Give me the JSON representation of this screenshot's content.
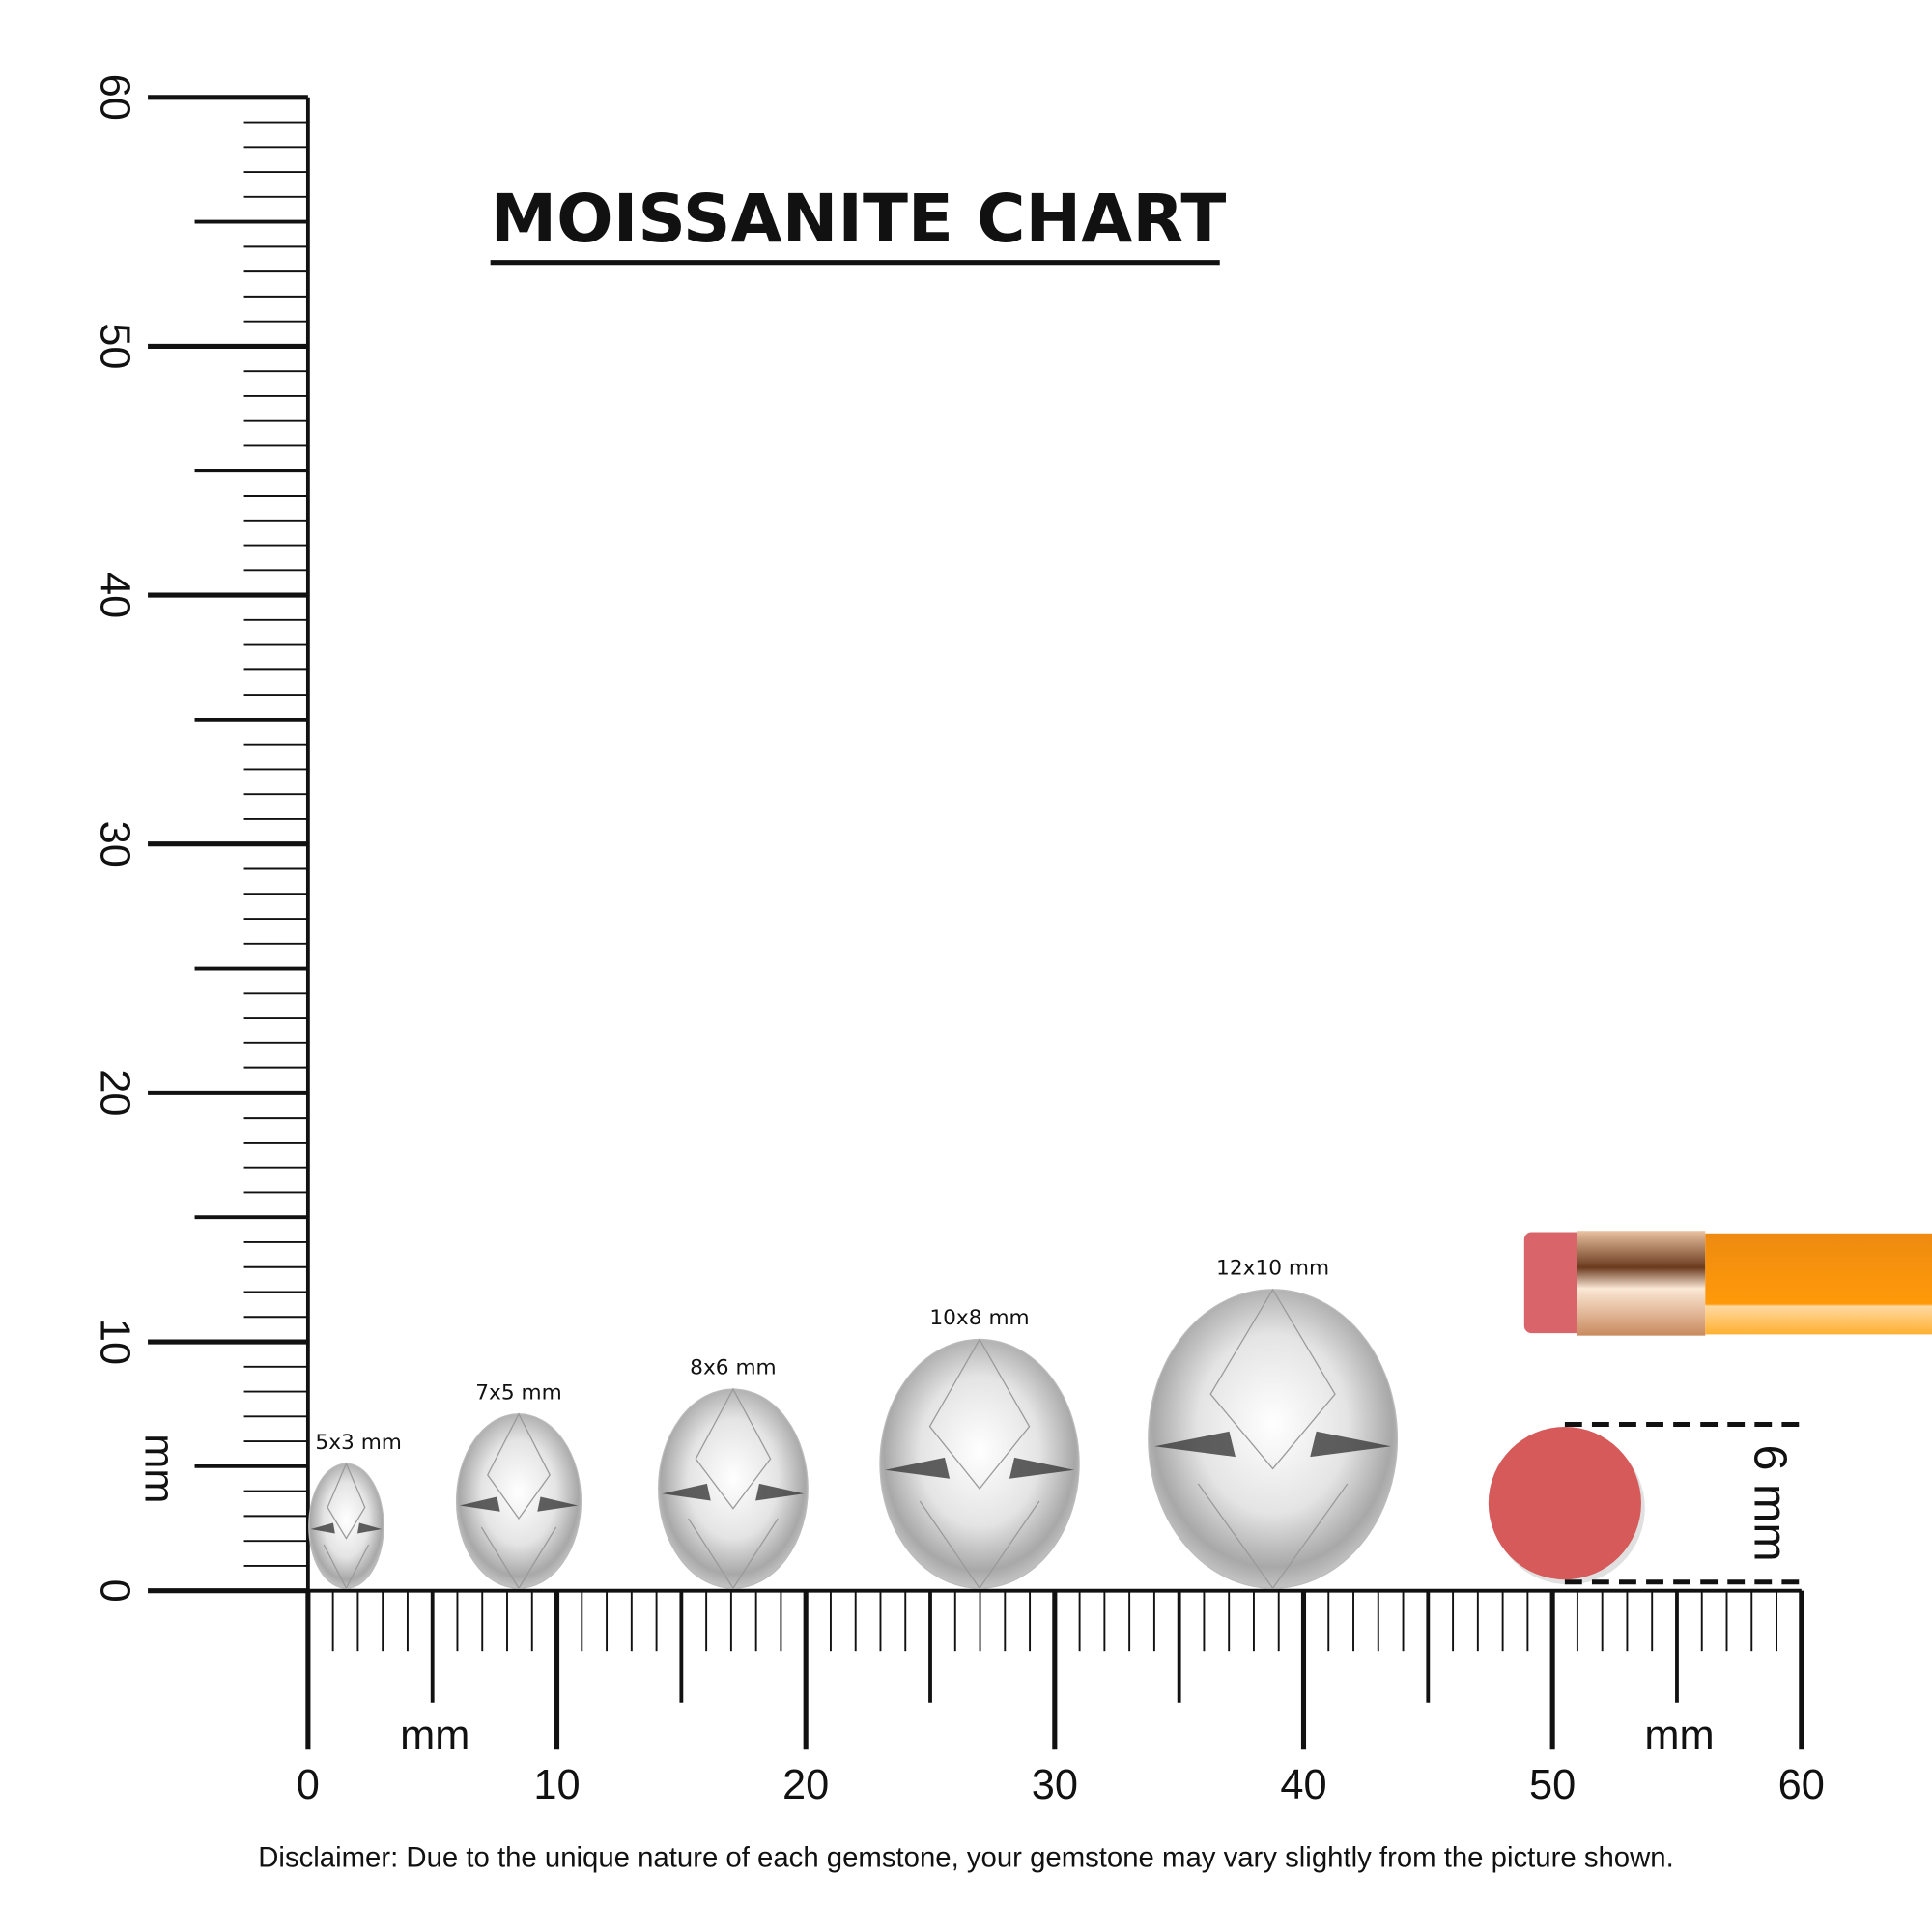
{
  "title": "MOISSANITE CHART",
  "ruler": {
    "unit_label": "mm",
    "vertical_labels": [
      "0",
      "10",
      "20",
      "30",
      "40",
      "50",
      "60"
    ],
    "horizontal_labels": [
      "0",
      "10",
      "20",
      "30",
      "40",
      "50",
      "60"
    ],
    "range_mm": [
      0,
      60
    ]
  },
  "gems": [
    {
      "label": "5x3 mm",
      "length_mm": 5,
      "width_mm": 3
    },
    {
      "label": "7x5 mm",
      "length_mm": 7,
      "width_mm": 5
    },
    {
      "label": "8x6 mm",
      "length_mm": 8,
      "width_mm": 6
    },
    {
      "label": "10x8 mm",
      "length_mm": 10,
      "width_mm": 8
    },
    {
      "label": "12x10 mm",
      "length_mm": 12,
      "width_mm": 10
    }
  ],
  "reference": {
    "eraser_label": "6 mm",
    "eraser_color": "#d65a5a",
    "pencil_color": "#f59a1c"
  },
  "disclaimer": "Disclaimer: Due to the unique nature of each gemstone, your gemstone may vary slightly from the picture shown."
}
